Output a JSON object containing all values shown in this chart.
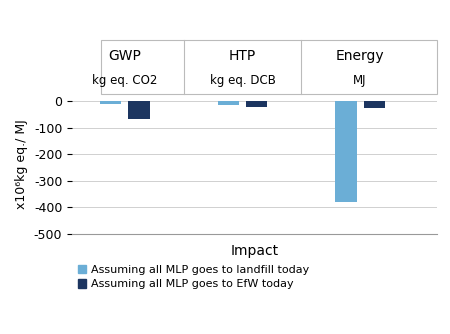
{
  "categories": [
    "GWP",
    "HTP",
    "Energy"
  ],
  "subtitles": [
    "kg eq. CO2",
    "kg eq. DCB",
    "MJ"
  ],
  "landfill_values": [
    -10,
    -15,
    -380
  ],
  "efw_values": [
    -65,
    -20,
    -25
  ],
  "landfill_color": "#6baed6",
  "efw_color": "#1c3560",
  "ylabel": "x10⁶kg eq./ MJ",
  "xlabel": "Impact",
  "ylim": [
    -500,
    30
  ],
  "yticks": [
    0,
    -100,
    -200,
    -300,
    -400,
    -500
  ],
  "bar_width": 0.18,
  "offsets": [
    -0.12,
    0.12
  ],
  "group_positions": [
    1.0,
    2.0,
    3.0
  ],
  "xlim": [
    0.55,
    3.65
  ],
  "legend_landfill": "Assuming all MLP goes to landfill today",
  "legend_efw": "Assuming all MLP goes to EfW today",
  "bg_color": "#ffffff",
  "grid_color": "#d0d0d0",
  "header_box_color": "#ffffff",
  "header_border_color": "#cccccc"
}
